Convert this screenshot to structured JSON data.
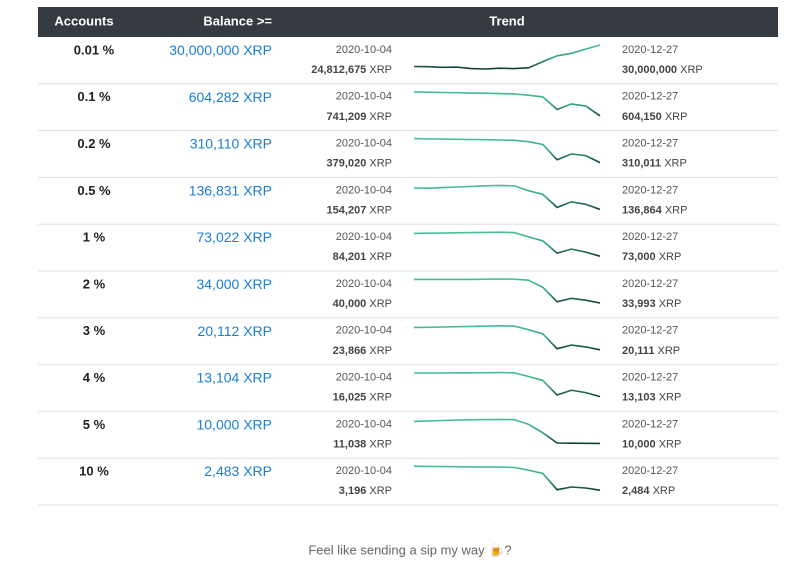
{
  "table": {
    "header": [
      "Accounts",
      "Balance >=",
      "Trend"
    ],
    "unit": "XRP",
    "rows": [
      {
        "accounts": "0.01 %",
        "balance": "30,000,000",
        "start_date": "2020-10-04",
        "start_balance": "24,812,675",
        "end_date": "2020-12-27",
        "end_balance": "30,000,000",
        "trend": [
          24812675,
          24750000,
          24600000,
          24650000,
          24300000,
          24200000,
          24400000,
          24300000,
          24500000,
          26000000,
          27400000,
          28000000,
          29000000,
          30000000
        ]
      },
      {
        "accounts": "0.1 %",
        "balance": "604,282",
        "start_date": "2020-10-04",
        "start_balance": "741,209",
        "end_date": "2020-12-27",
        "end_balance": "604,150",
        "trend": [
          741209,
          739000,
          737000,
          736000,
          734000,
          733000,
          731000,
          729000,
          722000,
          712000,
          640000,
          672000,
          660000,
          604150
        ]
      },
      {
        "accounts": "0.2 %",
        "balance": "310,110",
        "start_date": "2020-10-04",
        "start_balance": "379,020",
        "end_date": "2020-12-27",
        "end_balance": "310,011",
        "trend": [
          379020,
          378000,
          377500,
          377000,
          376500,
          376000,
          375000,
          374000,
          370000,
          362000,
          318000,
          335000,
          330000,
          310011
        ]
      },
      {
        "accounts": "0.5 %",
        "balance": "136,831",
        "start_date": "2020-10-04",
        "start_balance": "154,207",
        "end_date": "2020-12-27",
        "end_balance": "136,864",
        "trend": [
          154207,
          154000,
          154500,
          155000,
          155500,
          156000,
          156300,
          156000,
          152000,
          149000,
          138500,
          143000,
          141000,
          136864
        ]
      },
      {
        "accounts": "1 %",
        "balance": "73,022",
        "start_date": "2020-10-04",
        "start_balance": "84,201",
        "end_date": "2020-12-27",
        "end_balance": "73,000",
        "trend": [
          84201,
          84300,
          84400,
          84500,
          84600,
          84700,
          84800,
          84600,
          82500,
          80500,
          74500,
          76500,
          75000,
          73000
        ]
      },
      {
        "accounts": "2 %",
        "balance": "34,000",
        "start_date": "2020-10-04",
        "start_balance": "40,000",
        "end_date": "2020-12-27",
        "end_balance": "33,993",
        "trend": [
          40000,
          40000,
          40000,
          40000,
          40000,
          40050,
          40100,
          40050,
          39800,
          38000,
          34300,
          35200,
          34700,
          33993
        ]
      },
      {
        "accounts": "3 %",
        "balance": "20,112",
        "start_date": "2020-10-04",
        "start_balance": "23,866",
        "end_date": "2020-12-27",
        "end_balance": "20,111",
        "trend": [
          23866,
          23900,
          23950,
          24000,
          24050,
          24100,
          24150,
          24100,
          23500,
          22800,
          20300,
          20900,
          20600,
          20111
        ]
      },
      {
        "accounts": "4 %",
        "balance": "13,104",
        "start_date": "2020-10-04",
        "start_balance": "16,025",
        "end_date": "2020-12-27",
        "end_balance": "13,103",
        "trend": [
          16025,
          16030,
          16040,
          16050,
          16060,
          16070,
          16080,
          16050,
          15600,
          15100,
          13300,
          13900,
          13600,
          13103
        ]
      },
      {
        "accounts": "5 %",
        "balance": "10,000",
        "start_date": "2020-10-04",
        "start_balance": "11,038",
        "end_date": "2020-12-27",
        "end_balance": "10,000",
        "trend": [
          11038,
          11060,
          11080,
          11100,
          11110,
          11120,
          11130,
          11120,
          10900,
          10500,
          10020,
          10010,
          10005,
          10000
        ]
      },
      {
        "accounts": "10 %",
        "balance": "2,483",
        "start_date": "2020-10-04",
        "start_balance": "3,196",
        "end_date": "2020-12-27",
        "end_balance": "2,484",
        "trend": [
          3196,
          3190,
          3185,
          3180,
          3175,
          3170,
          3168,
          3160,
          3080,
          2980,
          2500,
          2580,
          2550,
          2484
        ]
      }
    ],
    "footer": "Feel like sending a sip my way 🍺?"
  }
}
